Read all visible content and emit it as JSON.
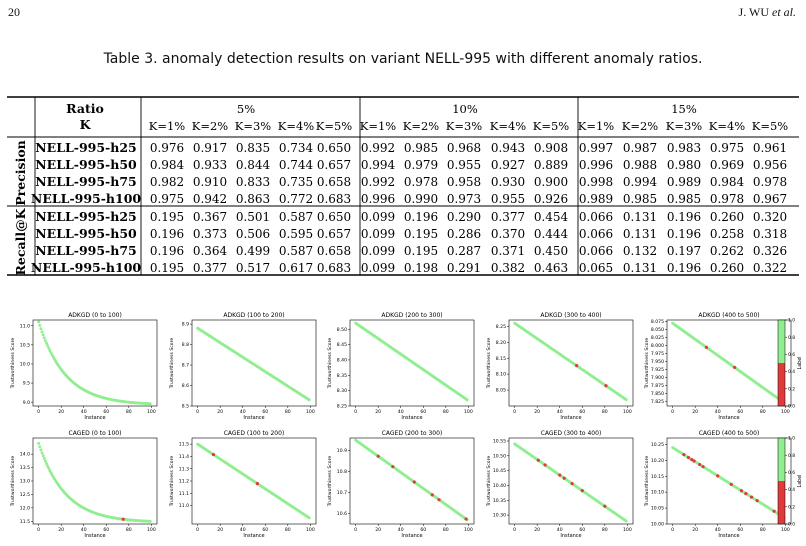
{
  "header": {
    "page_number": "20",
    "authors_prefix": "J. WU ",
    "authors_suffix": "et al."
  },
  "caption": "Table 3.  anomaly detection results on variant NELL-995 with different anomaly ratios.",
  "table": {
    "ratio_label": "Ratio",
    "k_label": "K",
    "groups": [
      "5%",
      "10%",
      "15%"
    ],
    "k_values": [
      "K=1%",
      "K=2%",
      "K=3%",
      "K=4%",
      "K=5%"
    ],
    "sections": [
      {
        "name": "Precision",
        "rows": [
          {
            "dataset": "NELL-995-h25",
            "values": [
              "0.976",
              "0.917",
              "0.835",
              "0.734",
              "0.650",
              "0.992",
              "0.985",
              "0.968",
              "0.943",
              "0.908",
              "0.997",
              "0.987",
              "0.983",
              "0.975",
              "0.961"
            ]
          },
          {
            "dataset": "NELL-995-h50",
            "values": [
              "0.984",
              "0.933",
              "0.844",
              "0.744",
              "0.657",
              "0.994",
              "0.979",
              "0.955",
              "0.927",
              "0.889",
              "0.996",
              "0.988",
              "0.980",
              "0.969",
              "0.956"
            ]
          },
          {
            "dataset": "NELL-995-h75",
            "values": [
              "0.982",
              "0.910",
              "0.833",
              "0.735",
              "0.658",
              "0.992",
              "0.978",
              "0.958",
              "0.930",
              "0.900",
              "0.998",
              "0.994",
              "0.989",
              "0.984",
              "0.978"
            ]
          },
          {
            "dataset": "NELL-995-h100",
            "values": [
              "0.975",
              "0.942",
              "0.863",
              "0.772",
              "0.683",
              "0.996",
              "0.990",
              "0.973",
              "0.955",
              "0.926",
              "0.989",
              "0.985",
              "0.985",
              "0.978",
              "0.967"
            ]
          }
        ]
      },
      {
        "name": "Recall@K",
        "rows": [
          {
            "dataset": "NELL-995-h25",
            "values": [
              "0.195",
              "0.367",
              "0.501",
              "0.587",
              "0.650",
              "0.099",
              "0.196",
              "0.290",
              "0.377",
              "0.454",
              "0.066",
              "0.131",
              "0.196",
              "0.260",
              "0.320"
            ]
          },
          {
            "dataset": "NELL-995-h50",
            "values": [
              "0.196",
              "0.373",
              "0.506",
              "0.595",
              "0.657",
              "0.099",
              "0.195",
              "0.286",
              "0.370",
              "0.444",
              "0.066",
              "0.131",
              "0.196",
              "0.258",
              "0.318"
            ]
          },
          {
            "dataset": "NELL-995-h75",
            "values": [
              "0.196",
              "0.364",
              "0.499",
              "0.587",
              "0.658",
              "0.099",
              "0.195",
              "0.287",
              "0.371",
              "0.450",
              "0.066",
              "0.132",
              "0.197",
              "0.262",
              "0.326"
            ]
          },
          {
            "dataset": "NELL-995-h100",
            "values": [
              "0.195",
              "0.377",
              "0.517",
              "0.617",
              "0.683",
              "0.099",
              "0.198",
              "0.291",
              "0.382",
              "0.463",
              "0.065",
              "0.131",
              "0.196",
              "0.260",
              "0.322"
            ]
          }
        ]
      }
    ]
  },
  "chart_data": [
    {
      "type": "scatter",
      "title": "ADKGD (0 to 100)",
      "xlabel": "Instance",
      "ylabel": "Trustworthiness Score",
      "xlim": [
        -5,
        105
      ],
      "ylim": [
        8.9,
        11.15
      ],
      "yticks": [
        "9.0",
        "9.5",
        "10.0",
        "10.5",
        "11.0"
      ],
      "ytick_values": [
        9.0,
        9.5,
        10.0,
        10.5,
        11.0
      ],
      "xticks": [
        "0",
        "20",
        "40",
        "60",
        "80",
        "100"
      ],
      "start": 11.1,
      "end": 8.96,
      "shape": "convex",
      "anomalies": []
    },
    {
      "type": "scatter",
      "title": "ADKGD (100 to 200)",
      "xlabel": "Instance",
      "ylabel": "Trustworthiness Score",
      "xlim": [
        -5,
        105
      ],
      "ylim": [
        8.5,
        8.92
      ],
      "yticks": [
        "8.5",
        "8.6",
        "8.7",
        "8.8",
        "8.9"
      ],
      "ytick_values": [
        8.5,
        8.6,
        8.7,
        8.8,
        8.9
      ],
      "xticks": [
        "0",
        "20",
        "40",
        "60",
        "80",
        "100"
      ],
      "start": 8.88,
      "end": 8.53,
      "shape": "linear",
      "anomalies": []
    },
    {
      "type": "scatter",
      "title": "ADKGD (200 to 300)",
      "xlabel": "Instance",
      "ylabel": "Trustworthiness Score",
      "xlim": [
        -5,
        105
      ],
      "ylim": [
        8.25,
        8.53
      ],
      "yticks": [
        "8.25",
        "8.30",
        "8.35",
        "8.40",
        "8.45",
        "8.50"
      ],
      "ytick_values": [
        8.25,
        8.3,
        8.35,
        8.4,
        8.45,
        8.5
      ],
      "xticks": [
        "0",
        "20",
        "40",
        "60",
        "80",
        "100"
      ],
      "start": 8.52,
      "end": 8.27,
      "shape": "linear",
      "anomalies": []
    },
    {
      "type": "scatter",
      "title": "ADKGD (300 to 400)",
      "xlabel": "Instance",
      "ylabel": "Trustworthiness Score",
      "xlim": [
        -5,
        105
      ],
      "ylim": [
        8.0,
        8.27
      ],
      "yticks": [
        "8.05",
        "8.10",
        "8.15",
        "8.20",
        "8.25"
      ],
      "ytick_values": [
        8.05,
        8.1,
        8.15,
        8.2,
        8.25
      ],
      "xticks": [
        "0",
        "20",
        "40",
        "60",
        "80",
        "100"
      ],
      "start": 8.26,
      "end": 8.02,
      "shape": "linear",
      "anomalies": [
        55,
        81
      ]
    },
    {
      "type": "scatter",
      "title": "ADKGD (400 to 500)",
      "xlabel": "Instance",
      "ylabel": "Trustworthiness Score",
      "xlim": [
        -5,
        105
      ],
      "ylim": [
        7.81,
        8.08
      ],
      "yticks": [
        "7.825",
        "7.850",
        "7.875",
        "7.900",
        "7.925",
        "7.950",
        "7.975",
        "8.000",
        "8.025",
        "8.050",
        "8.075"
      ],
      "ytick_values": [
        7.825,
        7.85,
        7.875,
        7.9,
        7.925,
        7.95,
        7.975,
        8.0,
        8.025,
        8.05,
        8.075
      ],
      "xticks": [
        "0",
        "20",
        "40",
        "60",
        "80",
        "100"
      ],
      "start": 8.07,
      "end": 7.82,
      "shape": "linear",
      "anomalies": [
        30,
        55,
        96
      ]
    },
    {
      "type": "scatter",
      "title": "CAGED (0 to 100)",
      "xlabel": "Instance",
      "ylabel": "Trustworthiness Score",
      "xlim": [
        -5,
        105
      ],
      "ylim": [
        11.4,
        14.6
      ],
      "yticks": [
        "11.5",
        "12.0",
        "12.5",
        "13.0",
        "13.5",
        "14.0"
      ],
      "ytick_values": [
        11.5,
        12.0,
        12.5,
        13.0,
        13.5,
        14.0
      ],
      "xticks": [
        "0",
        "20",
        "40",
        "60",
        "80",
        "100"
      ],
      "start": 14.4,
      "end": 11.5,
      "shape": "convex",
      "anomalies": [
        75
      ]
    },
    {
      "type": "scatter",
      "title": "CAGED (100 to 200)",
      "xlabel": "Instance",
      "ylabel": "Trustworthiness Score",
      "xlim": [
        -5,
        105
      ],
      "ylim": [
        10.85,
        11.55
      ],
      "yticks": [
        "11.0",
        "11.1",
        "11.2",
        "11.3",
        "11.4",
        "11.5"
      ],
      "ytick_values": [
        11.0,
        11.1,
        11.2,
        11.3,
        11.4,
        11.5
      ],
      "xticks": [
        "0",
        "20",
        "40",
        "60",
        "80",
        "100"
      ],
      "start": 11.5,
      "end": 10.9,
      "shape": "linear",
      "anomalies": [
        14,
        53
      ]
    },
    {
      "type": "scatter",
      "title": "CAGED (200 to 300)",
      "xlabel": "Instance",
      "ylabel": "Trustworthiness Score",
      "xlim": [
        -5,
        105
      ],
      "ylim": [
        10.55,
        10.96
      ],
      "yticks": [
        "10.6",
        "10.7",
        "10.8",
        "10.9"
      ],
      "ytick_values": [
        10.6,
        10.7,
        10.8,
        10.9
      ],
      "xticks": [
        "0",
        "20",
        "40",
        "60",
        "80",
        "100"
      ],
      "start": 10.95,
      "end": 10.57,
      "shape": "linear",
      "anomalies": [
        20,
        33,
        52,
        68,
        74,
        98
      ]
    },
    {
      "type": "scatter",
      "title": "CAGED (300 to 400)",
      "xlabel": "Instance",
      "ylabel": "Trustworthiness Score",
      "xlim": [
        -5,
        105
      ],
      "ylim": [
        10.27,
        10.56
      ],
      "yticks": [
        "10.30",
        "10.35",
        "10.40",
        "10.45",
        "10.50",
        "10.55"
      ],
      "ytick_values": [
        10.3,
        10.35,
        10.4,
        10.45,
        10.5,
        10.55
      ],
      "xticks": [
        "0",
        "20",
        "40",
        "60",
        "80",
        "100"
      ],
      "start": 10.54,
      "end": 10.28,
      "shape": "linear",
      "anomalies": [
        21,
        27,
        40,
        44,
        51,
        60,
        80
      ]
    },
    {
      "type": "scatter",
      "title": "CAGED (400 to 500)",
      "xlabel": "Instance",
      "ylabel": "Trustworthiness Score",
      "xlim": [
        -5,
        105
      ],
      "ylim": [
        10.0,
        10.27
      ],
      "yticks": [
        "10.00",
        "10.05",
        "10.10",
        "10.15",
        "10.20",
        "10.25"
      ],
      "ytick_values": [
        10.0,
        10.05,
        10.1,
        10.15,
        10.2,
        10.25
      ],
      "xticks": [
        "0",
        "20",
        "40",
        "60",
        "80",
        "100"
      ],
      "start": 10.24,
      "end": 10.02,
      "shape": "linear",
      "anomalies": [
        10,
        14,
        17,
        19,
        24,
        27,
        40,
        52,
        61,
        65,
        70,
        75,
        90,
        98
      ]
    }
  ],
  "colorbar": {
    "label": "Label",
    "ticks": [
      "0.0",
      "0.2",
      "0.4",
      "0.6",
      "0.8",
      "1.0"
    ],
    "tick_values": [
      0.0,
      0.2,
      0.4,
      0.6,
      0.8,
      1.0
    ],
    "colors": {
      "normal": "#90ee90",
      "anomaly": "#e03a3a"
    }
  }
}
